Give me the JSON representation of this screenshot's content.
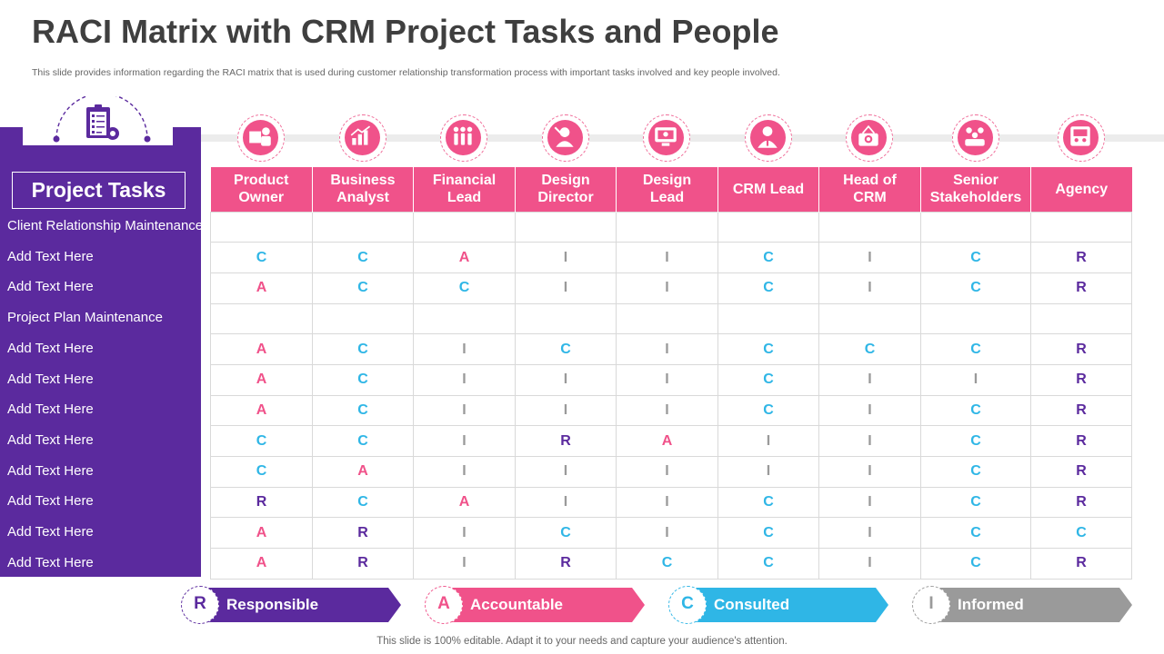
{
  "title": "RACI Matrix with CRM Project Tasks and People",
  "subtitle": "This slide provides information regarding the RACI matrix that is used during customer relationship transformation process with important tasks involved and key people involved.",
  "tasks_header": "Project Tasks",
  "columns": [
    "Product Owner",
    "Business Analyst",
    "Financial Lead",
    "Design Director",
    "Design Lead",
    "CRM Lead",
    "Head of CRM",
    "Senior Stakeholders",
    "Agency"
  ],
  "column_labels": [
    [
      "Product",
      "Owner"
    ],
    [
      "Business",
      "Analyst"
    ],
    [
      "Financial",
      "Lead"
    ],
    [
      "Design",
      "Director"
    ],
    [
      "Design",
      "Lead"
    ],
    [
      "CRM Lead",
      ""
    ],
    [
      "Head of",
      "CRM"
    ],
    [
      "Senior",
      "Stakeholders"
    ],
    [
      "Agency",
      ""
    ]
  ],
  "role_icons": [
    "product-owner-icon",
    "business-analyst-icon",
    "financial-lead-icon",
    "design-director-icon",
    "design-lead-icon",
    "crm-lead-icon",
    "head-of-crm-icon",
    "senior-stakeholders-icon",
    "agency-icon"
  ],
  "rows": [
    {
      "task": "Client Relationship Maintenance",
      "values": [
        "",
        "",
        "",
        "",
        "",
        "",
        "",
        "",
        ""
      ]
    },
    {
      "task": "Add Text Here",
      "values": [
        "C",
        "C",
        "A",
        "I",
        "I",
        "C",
        "I",
        "C",
        "R"
      ]
    },
    {
      "task": "Add Text Here",
      "values": [
        "A",
        "C",
        "C",
        "I",
        "I",
        "C",
        "I",
        "C",
        "R"
      ]
    },
    {
      "task": "Project Plan Maintenance",
      "values": [
        "",
        "",
        "",
        "",
        "",
        "",
        "",
        "",
        ""
      ]
    },
    {
      "task": "Add Text Here",
      "values": [
        "A",
        "C",
        "I",
        "C",
        "I",
        "C",
        "C",
        "C",
        "R"
      ]
    },
    {
      "task": "Add Text Here",
      "values": [
        "A",
        "C",
        "I",
        "I",
        "I",
        "C",
        "I",
        "I",
        "R"
      ]
    },
    {
      "task": "Add Text Here",
      "values": [
        "A",
        "C",
        "I",
        "I",
        "I",
        "C",
        "I",
        "C",
        "R"
      ]
    },
    {
      "task": "Add Text Here",
      "values": [
        "C",
        "C",
        "I",
        "R",
        "A",
        "I",
        "I",
        "C",
        "R"
      ]
    },
    {
      "task": "Add Text Here",
      "values": [
        "C",
        "A",
        "I",
        "I",
        "I",
        "I",
        "I",
        "C",
        "R"
      ]
    },
    {
      "task": "Add Text Here",
      "values": [
        "R",
        "C",
        "A",
        "I",
        "I",
        "C",
        "I",
        "C",
        "R"
      ]
    },
    {
      "task": "Add Text Here",
      "values": [
        "A",
        "R",
        "I",
        "C",
        "I",
        "C",
        "I",
        "C",
        "C"
      ]
    },
    {
      "task": "Add Text Here",
      "values": [
        "A",
        "R",
        "I",
        "R",
        "C",
        "C",
        "I",
        "C",
        "R"
      ]
    }
  ],
  "legend": [
    {
      "letter": "R",
      "label": "Responsible",
      "color": "#5b2a9e"
    },
    {
      "letter": "A",
      "label": "Accountable",
      "color": "#f0528a"
    },
    {
      "letter": "C",
      "label": "Consulted",
      "color": "#2fb6e6"
    },
    {
      "letter": "I",
      "label": "Informed",
      "color": "#9a9a9a"
    }
  ],
  "footer": "This slide is 100% editable. Adapt it to your needs and capture your audience's attention.",
  "colors": {
    "primary": "#5b2a9e",
    "accent": "#f0528a",
    "consulted": "#2fb6e6",
    "informed": "#9a9a9a"
  }
}
